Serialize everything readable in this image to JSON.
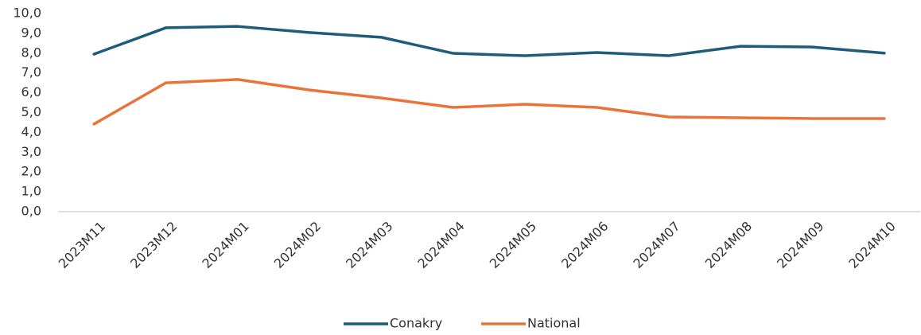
{
  "chart_data": {
    "type": "line",
    "categories": [
      "2023M11",
      "2023M12",
      "2024M01",
      "2024M02",
      "2024M03",
      "2024M04",
      "2024M05",
      "2024M06",
      "2024M07",
      "2024M08",
      "2024M09",
      "2024M10"
    ],
    "series": [
      {
        "name": "Conakry",
        "color": "#1f5c7a",
        "values": [
          7.95,
          9.28,
          9.35,
          9.04,
          8.8,
          7.99,
          7.87,
          8.03,
          7.87,
          8.35,
          8.31,
          8.0
        ]
      },
      {
        "name": "National",
        "color": "#e8743b",
        "values": [
          4.42,
          6.5,
          6.67,
          6.14,
          5.74,
          5.26,
          5.42,
          5.26,
          4.78,
          4.74,
          4.7,
          4.7
        ]
      }
    ],
    "ylim": [
      0,
      10
    ],
    "yticks": [
      {
        "value": 0,
        "label": "0,0"
      },
      {
        "value": 1,
        "label": "1,0"
      },
      {
        "value": 2,
        "label": "2,0"
      },
      {
        "value": 3,
        "label": "3,0"
      },
      {
        "value": 4,
        "label": "4,0"
      },
      {
        "value": 5,
        "label": "5,0"
      },
      {
        "value": 6,
        "label": "6,0"
      },
      {
        "value": 7,
        "label": "7,0"
      },
      {
        "value": 8,
        "label": "8,0"
      },
      {
        "value": 9,
        "label": "9,0"
      },
      {
        "value": 10,
        "label": "10,0"
      }
    ],
    "grid": false,
    "legend": "bottom"
  }
}
